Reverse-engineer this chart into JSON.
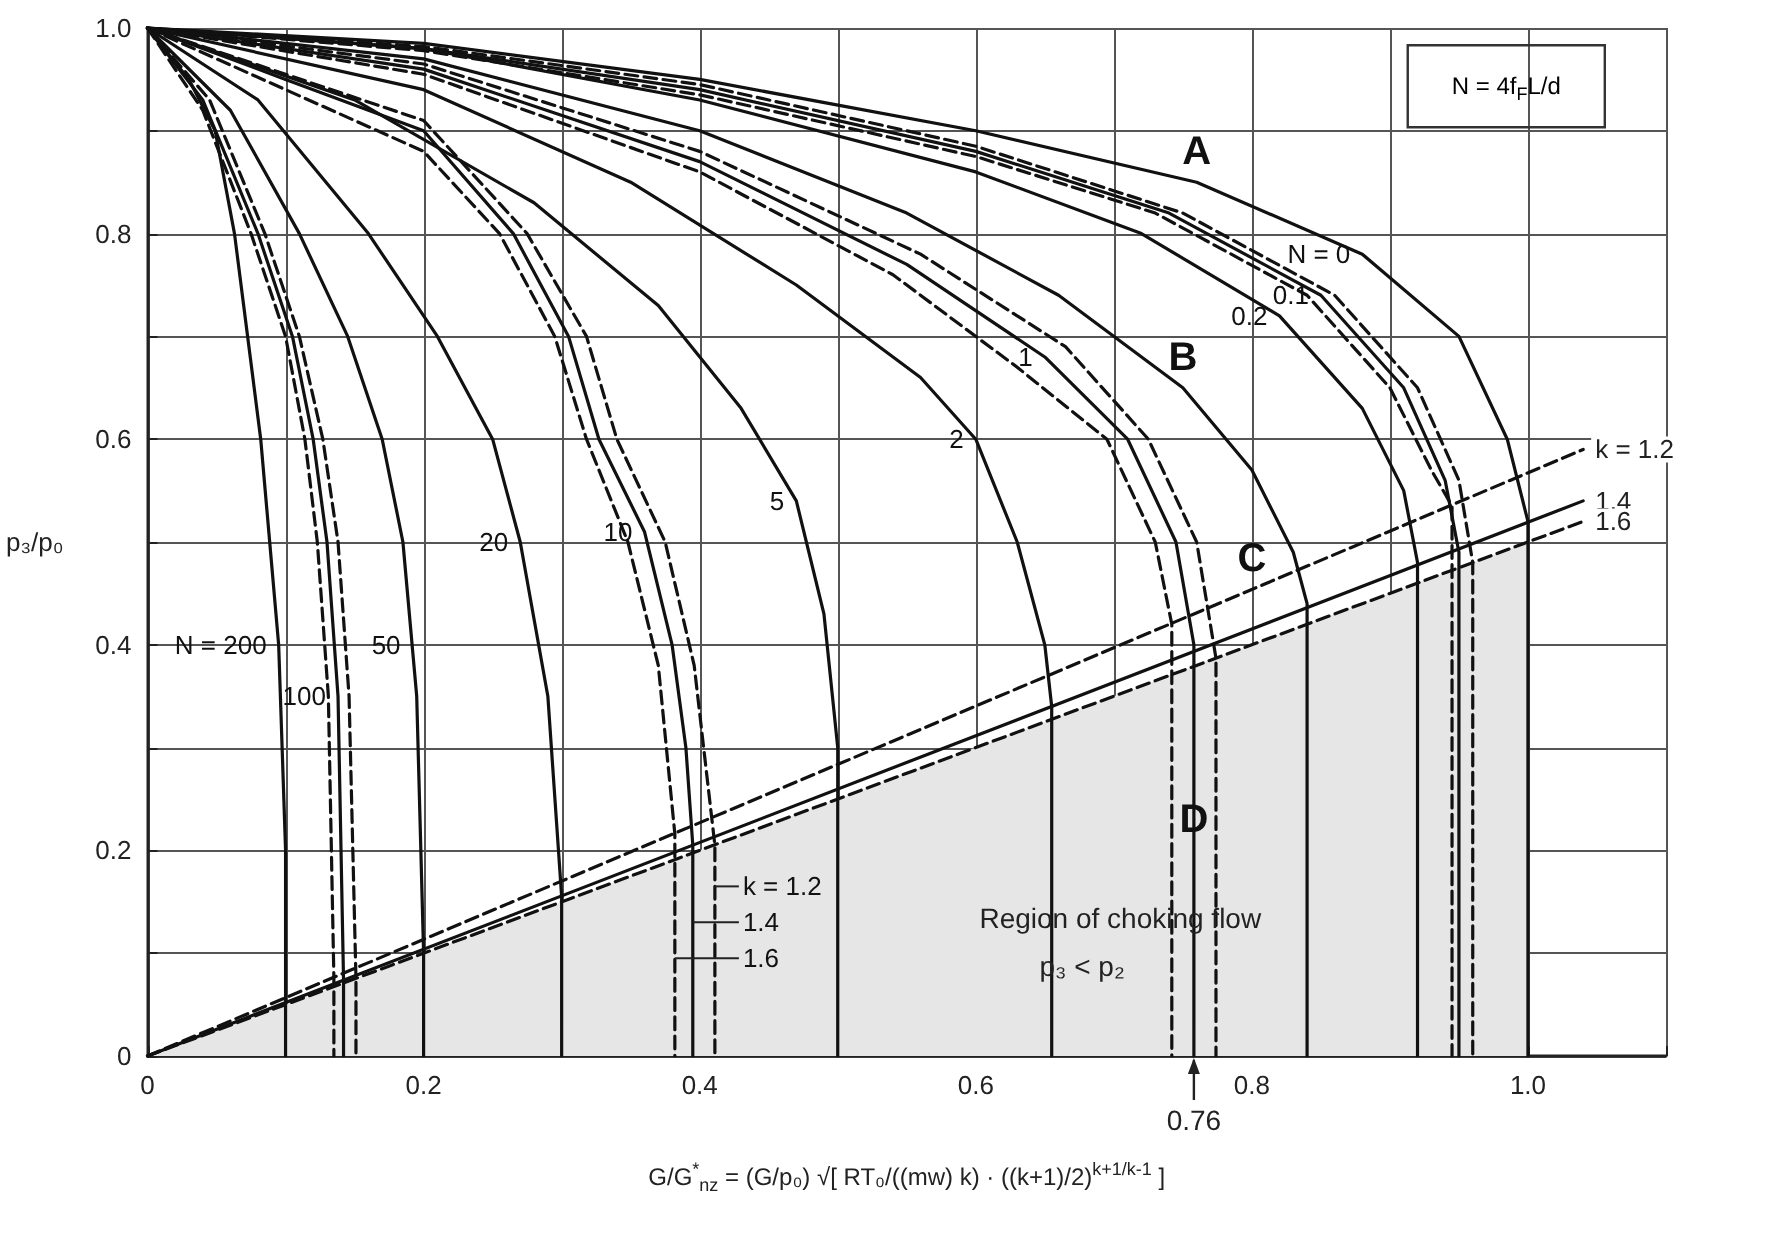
{
  "chart_data": {
    "type": "line",
    "xlabel": "G/G$^{*}$$_{nz}$ = (G/p₀) √[ RT₀/((mw) k) · ((k+1)/2)$^{k+1/k-1}$ ]",
    "ylabel": "p₃/p₀",
    "xlim": [
      0,
      1.1
    ],
    "ylim": [
      0,
      1.0
    ],
    "xticks": [
      0,
      {
        "value": 0.1,
        "label": null
      },
      0.2,
      {
        "value": 0.3,
        "label": null
      },
      0.4,
      {
        "value": 0.5,
        "label": null
      },
      0.6,
      {
        "value": 0.7,
        "label": null
      },
      0.8,
      {
        "value": 0.9,
        "label": null
      },
      {
        "value": 1.0,
        "label": "1.0"
      },
      {
        "value": 1.1,
        "label": null
      }
    ],
    "yticks": [
      0,
      {
        "value": 0.1,
        "label": null
      },
      0.2,
      {
        "value": 0.3,
        "label": null
      },
      0.4,
      {
        "value": 0.5,
        "label": null
      },
      0.6,
      {
        "value": 0.7,
        "label": null
      },
      0.8,
      {
        "value": 0.9,
        "label": null
      },
      {
        "value": 1.0,
        "label": "1.0"
      }
    ],
    "grid": true,
    "legend": false,
    "marker": "none",
    "line_style": "solid",
    "series": [
      {
        "type": "area",
        "color": "#e6e6e6",
        "x": [
          0,
          1.0
        ],
        "values": [
          0,
          0.5
        ]
      },
      {
        "color": "#111111",
        "x": [
          0,
          0.2,
          0.4,
          0.6,
          0.76,
          0.88,
          0.95,
          0.985,
          1.0,
          1.0
        ],
        "values": [
          1,
          0.985,
          0.95,
          0.9,
          0.85,
          0.78,
          0.7,
          0.6,
          0.52,
          0
        ]
      },
      {
        "color": "#111111",
        "x": [
          0,
          0.2,
          0.4,
          0.6,
          0.74,
          0.85,
          0.91,
          0.94,
          0.95,
          0.95
        ],
        "values": [
          1,
          0.98,
          0.94,
          0.88,
          0.82,
          0.74,
          0.65,
          0.56,
          0.49,
          0
        ]
      },
      {
        "color": "#111111",
        "line_style": "dashed",
        "x": [
          0,
          0.2,
          0.4,
          0.6,
          0.73,
          0.84,
          0.9,
          0.93,
          0.945,
          0.945
        ],
        "values": [
          1,
          0.978,
          0.935,
          0.875,
          0.82,
          0.74,
          0.65,
          0.57,
          0.535,
          0
        ]
      },
      {
        "color": "#111111",
        "line_style": "dashed",
        "x": [
          0,
          0.2,
          0.4,
          0.6,
          0.75,
          0.86,
          0.92,
          0.95,
          0.96,
          0.96
        ],
        "values": [
          1,
          0.982,
          0.945,
          0.885,
          0.82,
          0.74,
          0.65,
          0.56,
          0.48,
          0
        ]
      },
      {
        "color": "#111111",
        "x": [
          0,
          0.2,
          0.4,
          0.6,
          0.72,
          0.82,
          0.88,
          0.91,
          0.92,
          0.92
        ],
        "values": [
          1,
          0.98,
          0.93,
          0.86,
          0.8,
          0.72,
          0.63,
          0.55,
          0.48,
          0
        ]
      },
      {
        "color": "#111111",
        "x": [
          0,
          0.2,
          0.4,
          0.55,
          0.66,
          0.75,
          0.8,
          0.83,
          0.84,
          0.84
        ],
        "values": [
          1,
          0.97,
          0.9,
          0.82,
          0.74,
          0.65,
          0.57,
          0.49,
          0.44,
          0
        ]
      },
      {
        "color": "#111111",
        "x": [
          0,
          0.2,
          0.4,
          0.55,
          0.65,
          0.71,
          0.745,
          0.758,
          0.758
        ],
        "values": [
          1,
          0.96,
          0.87,
          0.77,
          0.68,
          0.6,
          0.5,
          0.4,
          0
        ]
      },
      {
        "color": "#111111",
        "line_style": "dashed",
        "x": [
          0,
          0.2,
          0.4,
          0.54,
          0.63,
          0.695,
          0.73,
          0.742,
          0.742
        ],
        "values": [
          1,
          0.955,
          0.86,
          0.76,
          0.67,
          0.6,
          0.5,
          0.42,
          0
        ]
      },
      {
        "color": "#111111",
        "line_style": "dashed",
        "x": [
          0,
          0.2,
          0.4,
          0.56,
          0.665,
          0.725,
          0.76,
          0.774,
          0.774
        ],
        "values": [
          1,
          0.965,
          0.88,
          0.78,
          0.69,
          0.6,
          0.5,
          0.387,
          0
        ]
      },
      {
        "color": "#111111",
        "x": [
          0,
          0.2,
          0.35,
          0.47,
          0.56,
          0.6,
          0.63,
          0.65,
          0.655,
          0.655
        ],
        "values": [
          1,
          0.94,
          0.85,
          0.75,
          0.66,
          0.6,
          0.5,
          0.4,
          0.34,
          0
        ]
      },
      {
        "color": "#111111",
        "x": [
          0,
          0.15,
          0.28,
          0.37,
          0.43,
          0.47,
          0.49,
          0.5,
          0.5
        ],
        "values": [
          1,
          0.93,
          0.83,
          0.73,
          0.63,
          0.54,
          0.43,
          0.3,
          0
        ]
      },
      {
        "color": "#111111",
        "x": [
          0,
          0.1,
          0.2,
          0.265,
          0.305,
          0.327,
          0.36,
          0.38,
          0.39,
          0.395,
          0.395
        ],
        "values": [
          1,
          0.95,
          0.9,
          0.8,
          0.7,
          0.6,
          0.51,
          0.4,
          0.3,
          0.205,
          0
        ]
      },
      {
        "color": "#111111",
        "line_style": "dashed",
        "x": [
          0,
          0.1,
          0.2,
          0.255,
          0.295,
          0.318,
          0.348,
          0.37,
          0.382,
          0.382
        ],
        "values": [
          1,
          0.94,
          0.88,
          0.8,
          0.7,
          0.6,
          0.5,
          0.38,
          0.216,
          0
        ]
      },
      {
        "color": "#111111",
        "line_style": "dashed",
        "x": [
          0,
          0.1,
          0.2,
          0.275,
          0.318,
          0.34,
          0.375,
          0.396,
          0.411,
          0.411
        ],
        "values": [
          1,
          0.955,
          0.91,
          0.8,
          0.7,
          0.6,
          0.5,
          0.38,
          0.205,
          0
        ]
      },
      {
        "color": "#111111",
        "x": [
          0,
          0.08,
          0.16,
          0.21,
          0.25,
          0.27,
          0.29,
          0.3,
          0.3
        ],
        "values": [
          1,
          0.93,
          0.8,
          0.7,
          0.6,
          0.5,
          0.35,
          0.155,
          0
        ]
      },
      {
        "color": "#111111",
        "x": [
          0,
          0.06,
          0.11,
          0.145,
          0.17,
          0.185,
          0.195,
          0.2,
          0.2
        ],
        "values": [
          1,
          0.92,
          0.8,
          0.7,
          0.6,
          0.5,
          0.35,
          0.1,
          0
        ]
      },
      {
        "color": "#111111",
        "x": [
          0,
          0.04,
          0.08,
          0.105,
          0.12,
          0.13,
          0.138,
          0.142,
          0.142
        ],
        "values": [
          1,
          0.93,
          0.8,
          0.7,
          0.6,
          0.5,
          0.35,
          0.074,
          0
        ]
      },
      {
        "color": "#111111",
        "line_style": "dashed",
        "x": [
          0,
          0.04,
          0.075,
          0.1,
          0.114,
          0.123,
          0.131,
          0.135,
          0.135
        ],
        "values": [
          1,
          0.92,
          0.8,
          0.7,
          0.6,
          0.5,
          0.35,
          0.076,
          0
        ]
      },
      {
        "color": "#111111",
        "line_style": "dashed",
        "x": [
          0,
          0.045,
          0.085,
          0.11,
          0.127,
          0.138,
          0.146,
          0.151,
          0.151
        ],
        "values": [
          1,
          0.93,
          0.8,
          0.7,
          0.6,
          0.5,
          0.35,
          0.075,
          0
        ]
      },
      {
        "color": "#111111",
        "x": [
          0,
          0.03,
          0.049,
          0.063,
          0.082,
          0.095,
          0.1,
          0.1
        ],
        "values": [
          1,
          0.95,
          0.9,
          0.8,
          0.6,
          0.4,
          0.2,
          0
        ]
      },
      {
        "name": "k = 1.2",
        "color": "#111111",
        "line_style": "dashed",
        "x": [
          0,
          1.04
        ],
        "values": [
          0,
          0.59
        ]
      },
      {
        "name": "1.4",
        "color": "#111111",
        "x": [
          0,
          1.04
        ],
        "values": [
          0,
          0.54
        ]
      },
      {
        "name": "1.6",
        "color": "#111111",
        "line_style": "dashed",
        "x": [
          0,
          1.04
        ],
        "values": [
          0,
          0.52
        ]
      }
    ],
    "annotations": [
      "N = 4f$_{F}$L/d",
      {
        "text": "N = 0",
        "x": 0.88,
        "y": 0.78
      },
      {
        "text": "0.1",
        "x": 0.85,
        "y": 0.74
      },
      {
        "text": "0.2",
        "x": 0.82,
        "y": 0.72
      },
      {
        "text": "1",
        "x": 0.65,
        "y": 0.68
      },
      {
        "text": "2",
        "x": 0.6,
        "y": 0.6
      },
      {
        "text": "5",
        "x": 0.47,
        "y": 0.54
      },
      {
        "text": "10",
        "x": 0.36,
        "y": 0.51
      },
      {
        "text": "20",
        "x": 0.27,
        "y": 0.5
      },
      {
        "text": "50",
        "x": 0.192,
        "y": 0.4
      },
      {
        "text": "100",
        "x": 0.138,
        "y": 0.35
      },
      {
        "text": "N = 200",
        "x": 0.095,
        "y": 0.4
      },
      {
        "text": "A",
        "x": 0.76,
        "y": 0.85
      },
      {
        "text": "B",
        "x": 0.75,
        "y": 0.65
      },
      {
        "text": "C",
        "x": 0.8,
        "y": 0.454
      },
      {
        "text": "D",
        "x": 0.758,
        "y": 0.2
      },
      {
        "text": "k = 1.2",
        "x": 0.411,
        "y": 0.165
      },
      {
        "text": "1.4",
        "x": 0.395,
        "y": 0.13
      },
      {
        "text": "1.6",
        "x": 0.382,
        "y": 0.095
      },
      "Region of choking flow",
      "p₃ < p₂",
      {
        "text": "0.76",
        "x": 0.758,
        "y": 0
      }
    ]
  }
}
